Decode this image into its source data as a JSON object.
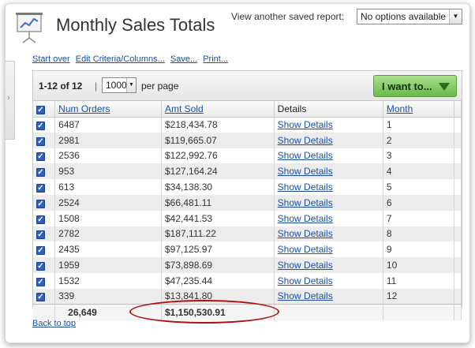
{
  "header": {
    "title": "Monthly Sales Totals",
    "saved_label": "View another saved report:",
    "saved_select_value": "No options available"
  },
  "links": {
    "start_over": "Start over",
    "edit": "Edit Criteria/Columns...",
    "save": "Save...",
    "print": "Print..."
  },
  "toolbar": {
    "range": "1-12 of 12",
    "separator": "|",
    "per_page_value": "1000",
    "per_page_label": "per page",
    "action_label": "I want to..."
  },
  "table": {
    "columns": [
      "Num Orders",
      "Amt Sold",
      "Details",
      "Month"
    ],
    "rows": [
      {
        "orders": "6487",
        "amt": "$218,434.78",
        "details": "Show Details",
        "month": "1"
      },
      {
        "orders": "2981",
        "amt": "$119,665.07",
        "details": "Show Details",
        "month": "2"
      },
      {
        "orders": "2536",
        "amt": "$122,992.76",
        "details": "Show Details",
        "month": "3"
      },
      {
        "orders": "953",
        "amt": "$127,164.24",
        "details": "Show Details",
        "month": "4"
      },
      {
        "orders": "613",
        "amt": "$34,138.30",
        "details": "Show Details",
        "month": "5"
      },
      {
        "orders": "2524",
        "amt": "$66,481.11",
        "details": "Show Details",
        "month": "6"
      },
      {
        "orders": "1508",
        "amt": "$42,441.53",
        "details": "Show Details",
        "month": "7"
      },
      {
        "orders": "2782",
        "amt": "$187,111.22",
        "details": "Show Details",
        "month": "8"
      },
      {
        "orders": "2435",
        "amt": "$97,125.97",
        "details": "Show Details",
        "month": "9"
      },
      {
        "orders": "1959",
        "amt": "$73,898.69",
        "details": "Show Details",
        "month": "10"
      },
      {
        "orders": "1532",
        "amt": "$47,235.44",
        "details": "Show Details",
        "month": "11"
      },
      {
        "orders": "339",
        "amt": "$13,841.80",
        "details": "Show Details",
        "month": "12"
      }
    ],
    "totals": {
      "orders": "26,649",
      "amt": "$1,150,530.91"
    }
  },
  "footer": {
    "back_to_top": "Back to top"
  },
  "colors": {
    "accent_green": "#69b94c",
    "link_blue": "#1a4fa5",
    "annotation_red": "#b01010"
  }
}
